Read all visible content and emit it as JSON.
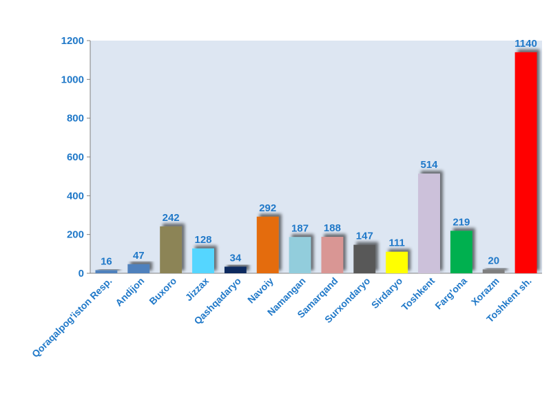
{
  "chart_data": {
    "type": "bar",
    "title": "",
    "xlabel": "",
    "ylabel": "",
    "ylim": [
      0,
      1200
    ],
    "yticks": [
      0,
      200,
      400,
      600,
      800,
      1000,
      1200
    ],
    "grid": false,
    "legend": "none",
    "plot_background": "#dde6f2",
    "categories": [
      "Qoraqalpog'iston Resp.",
      "Andijon",
      "Buxoro",
      "Jizzax",
      "Qashqadaryo",
      "Navoiy",
      "Namangan",
      "Samarqand",
      "Surxondaryo",
      "Sirdaryo",
      "Toshkent",
      "Farg'ona",
      "Xorazm",
      "Toshkent sh."
    ],
    "values": [
      16,
      47,
      242,
      128,
      34,
      292,
      187,
      188,
      147,
      111,
      514,
      219,
      20,
      1140
    ],
    "colors": [
      "#4f81bd",
      "#4f81bd",
      "#8c8456",
      "#55d6ff",
      "#0c2a5e",
      "#e46c0a",
      "#92cddc",
      "#d99694",
      "#595959",
      "#ffff00",
      "#ccc1da",
      "#00b050",
      "#7f7f7f",
      "#ff0000"
    ]
  }
}
